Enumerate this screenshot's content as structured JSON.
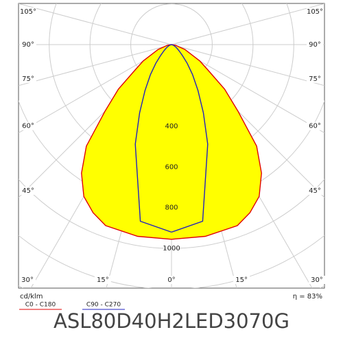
{
  "chart_data": {
    "type": "polar",
    "title": "ASL80D40H2LED3070G",
    "unit_label": "cd/klm",
    "efficiency_label": "η = 83%",
    "x": [
      0,
      10,
      20,
      25,
      30,
      35,
      40,
      45,
      50,
      55,
      60,
      70,
      80,
      90
    ],
    "series": [
      {
        "name": "C0 - C180",
        "color": "#e00000",
        "fill": "#ffff00",
        "values": [
          955,
          955,
          945,
          910,
          860,
          770,
          650,
          460,
          340,
          220,
          160,
          70,
          20,
          0
        ]
      },
      {
        "name": "C90 - C270",
        "color": "#2020c0",
        "values": [
          920,
          880,
          520,
          370,
          260,
          180,
          120,
          75,
          50,
          35,
          25,
          10,
          3,
          0
        ]
      }
    ],
    "rlim": [
      0,
      1400
    ],
    "rticks": [
      400,
      600,
      800,
      1000
    ],
    "rgrid": [
      200,
      400,
      600,
      800,
      1000,
      1200,
      1400
    ],
    "angle_ticks": [
      {
        "value": -105,
        "label": "105°"
      },
      {
        "value": -90,
        "label": "90°"
      },
      {
        "value": -75,
        "label": "75°"
      },
      {
        "value": -60,
        "label": "60°"
      },
      {
        "value": -45,
        "label": "45°"
      },
      {
        "value": -30,
        "label": "30°"
      },
      {
        "value": -15,
        "label": "15°"
      },
      {
        "value": 0,
        "label": "0°"
      },
      {
        "value": 15,
        "label": "15°"
      },
      {
        "value": 30,
        "label": "30°"
      },
      {
        "value": 45,
        "label": "45°"
      },
      {
        "value": 60,
        "label": "60°"
      },
      {
        "value": 75,
        "label": "75°"
      },
      {
        "value": 90,
        "label": "90°"
      },
      {
        "value": 105,
        "label": "105°"
      }
    ],
    "grid": true
  }
}
